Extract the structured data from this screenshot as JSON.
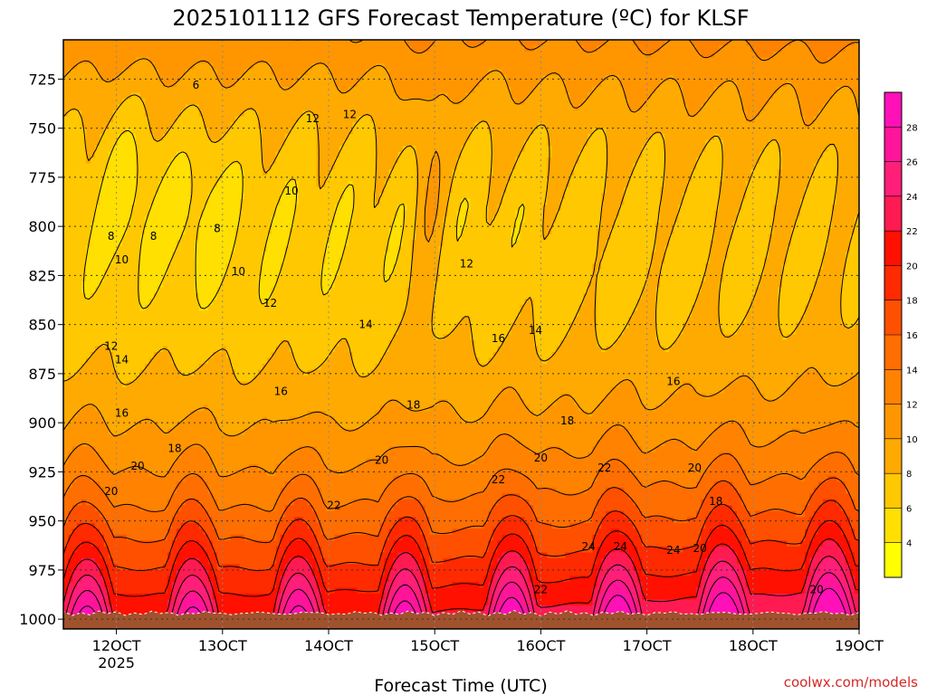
{
  "chart_data": {
    "type": "heatmap",
    "title": "2025101112 GFS Forecast Temperature (ºC) for KLSF",
    "xlabel": "Forecast Time (UTC)",
    "ylabel": "",
    "x_ticks": [
      {
        "label": "12OCT",
        "sublabel": "2025",
        "day": 12
      },
      {
        "label": "13OCT",
        "sublabel": "",
        "day": 13
      },
      {
        "label": "14OCT",
        "sublabel": "",
        "day": 14
      },
      {
        "label": "15OCT",
        "sublabel": "",
        "day": 15
      },
      {
        "label": "16OCT",
        "sublabel": "",
        "day": 16
      },
      {
        "label": "17OCT",
        "sublabel": "",
        "day": 17
      },
      {
        "label": "18OCT",
        "sublabel": "",
        "day": 18
      },
      {
        "label": "19OCT",
        "sublabel": "",
        "day": 19
      }
    ],
    "x_range_days": [
      11.5,
      19.0
    ],
    "y_ticks": [
      725,
      750,
      775,
      800,
      825,
      850,
      875,
      900,
      925,
      950,
      975,
      1000
    ],
    "y_range_hpa": [
      705,
      1005
    ],
    "ground_level_hpa": 997,
    "grid": true,
    "colorbar": {
      "placement": "right",
      "levels": [
        2,
        4,
        6,
        8,
        10,
        12,
        14,
        16,
        18,
        20,
        22,
        24,
        26,
        28,
        30
      ],
      "tick_labels": [
        "4",
        "6",
        "8",
        "10",
        "12",
        "14",
        "16",
        "18",
        "20",
        "22",
        "24",
        "26",
        "28"
      ],
      "colors": [
        "#ffff00",
        "#ffe000",
        "#ffc800",
        "#ffaa00",
        "#ff9600",
        "#ff8200",
        "#ff6e00",
        "#ff5000",
        "#ff2a00",
        "#ff1000",
        "#ff1a52",
        "#ff1e78",
        "#ff149a",
        "#ff10b8"
      ]
    },
    "contour_labels": [
      {
        "text": "6",
        "day": 12.75,
        "hpa": 728
      },
      {
        "text": "8",
        "day": 11.95,
        "hpa": 805
      },
      {
        "text": "8",
        "day": 12.35,
        "hpa": 805
      },
      {
        "text": "8",
        "day": 12.95,
        "hpa": 801
      },
      {
        "text": "10",
        "day": 12.05,
        "hpa": 817
      },
      {
        "text": "10",
        "day": 13.65,
        "hpa": 782
      },
      {
        "text": "10",
        "day": 13.15,
        "hpa": 823
      },
      {
        "text": "12",
        "day": 13.85,
        "hpa": 745
      },
      {
        "text": "12",
        "day": 14.2,
        "hpa": 743
      },
      {
        "text": "12",
        "day": 13.45,
        "hpa": 839
      },
      {
        "text": "12",
        "day": 11.95,
        "hpa": 861
      },
      {
        "text": "12",
        "day": 15.3,
        "hpa": 819
      },
      {
        "text": "14",
        "day": 12.05,
        "hpa": 868
      },
      {
        "text": "14",
        "day": 14.35,
        "hpa": 850
      },
      {
        "text": "14",
        "day": 15.95,
        "hpa": 853
      },
      {
        "text": "16",
        "day": 12.05,
        "hpa": 895
      },
      {
        "text": "16",
        "day": 13.55,
        "hpa": 884
      },
      {
        "text": "16",
        "day": 15.6,
        "hpa": 857
      },
      {
        "text": "16",
        "day": 17.25,
        "hpa": 879
      },
      {
        "text": "18",
        "day": 12.55,
        "hpa": 913
      },
      {
        "text": "18",
        "day": 14.8,
        "hpa": 891
      },
      {
        "text": "18",
        "day": 16.25,
        "hpa": 899
      },
      {
        "text": "18",
        "day": 17.65,
        "hpa": 940
      },
      {
        "text": "20",
        "day": 11.95,
        "hpa": 935
      },
      {
        "text": "20",
        "day": 12.2,
        "hpa": 922
      },
      {
        "text": "20",
        "day": 14.5,
        "hpa": 919
      },
      {
        "text": "20",
        "day": 16.0,
        "hpa": 918
      },
      {
        "text": "20",
        "day": 17.45,
        "hpa": 923
      },
      {
        "text": "20",
        "day": 17.5,
        "hpa": 964
      },
      {
        "text": "20",
        "day": 18.6,
        "hpa": 985
      },
      {
        "text": "22",
        "day": 14.05,
        "hpa": 942
      },
      {
        "text": "22",
        "day": 15.6,
        "hpa": 929
      },
      {
        "text": "22",
        "day": 16.6,
        "hpa": 923
      },
      {
        "text": "22",
        "day": 16.0,
        "hpa": 985
      },
      {
        "text": "24",
        "day": 16.45,
        "hpa": 963
      },
      {
        "text": "24",
        "day": 16.75,
        "hpa": 963
      },
      {
        "text": "24",
        "day": 17.25,
        "hpa": 965
      }
    ],
    "credit": "coolwx.com/models"
  }
}
